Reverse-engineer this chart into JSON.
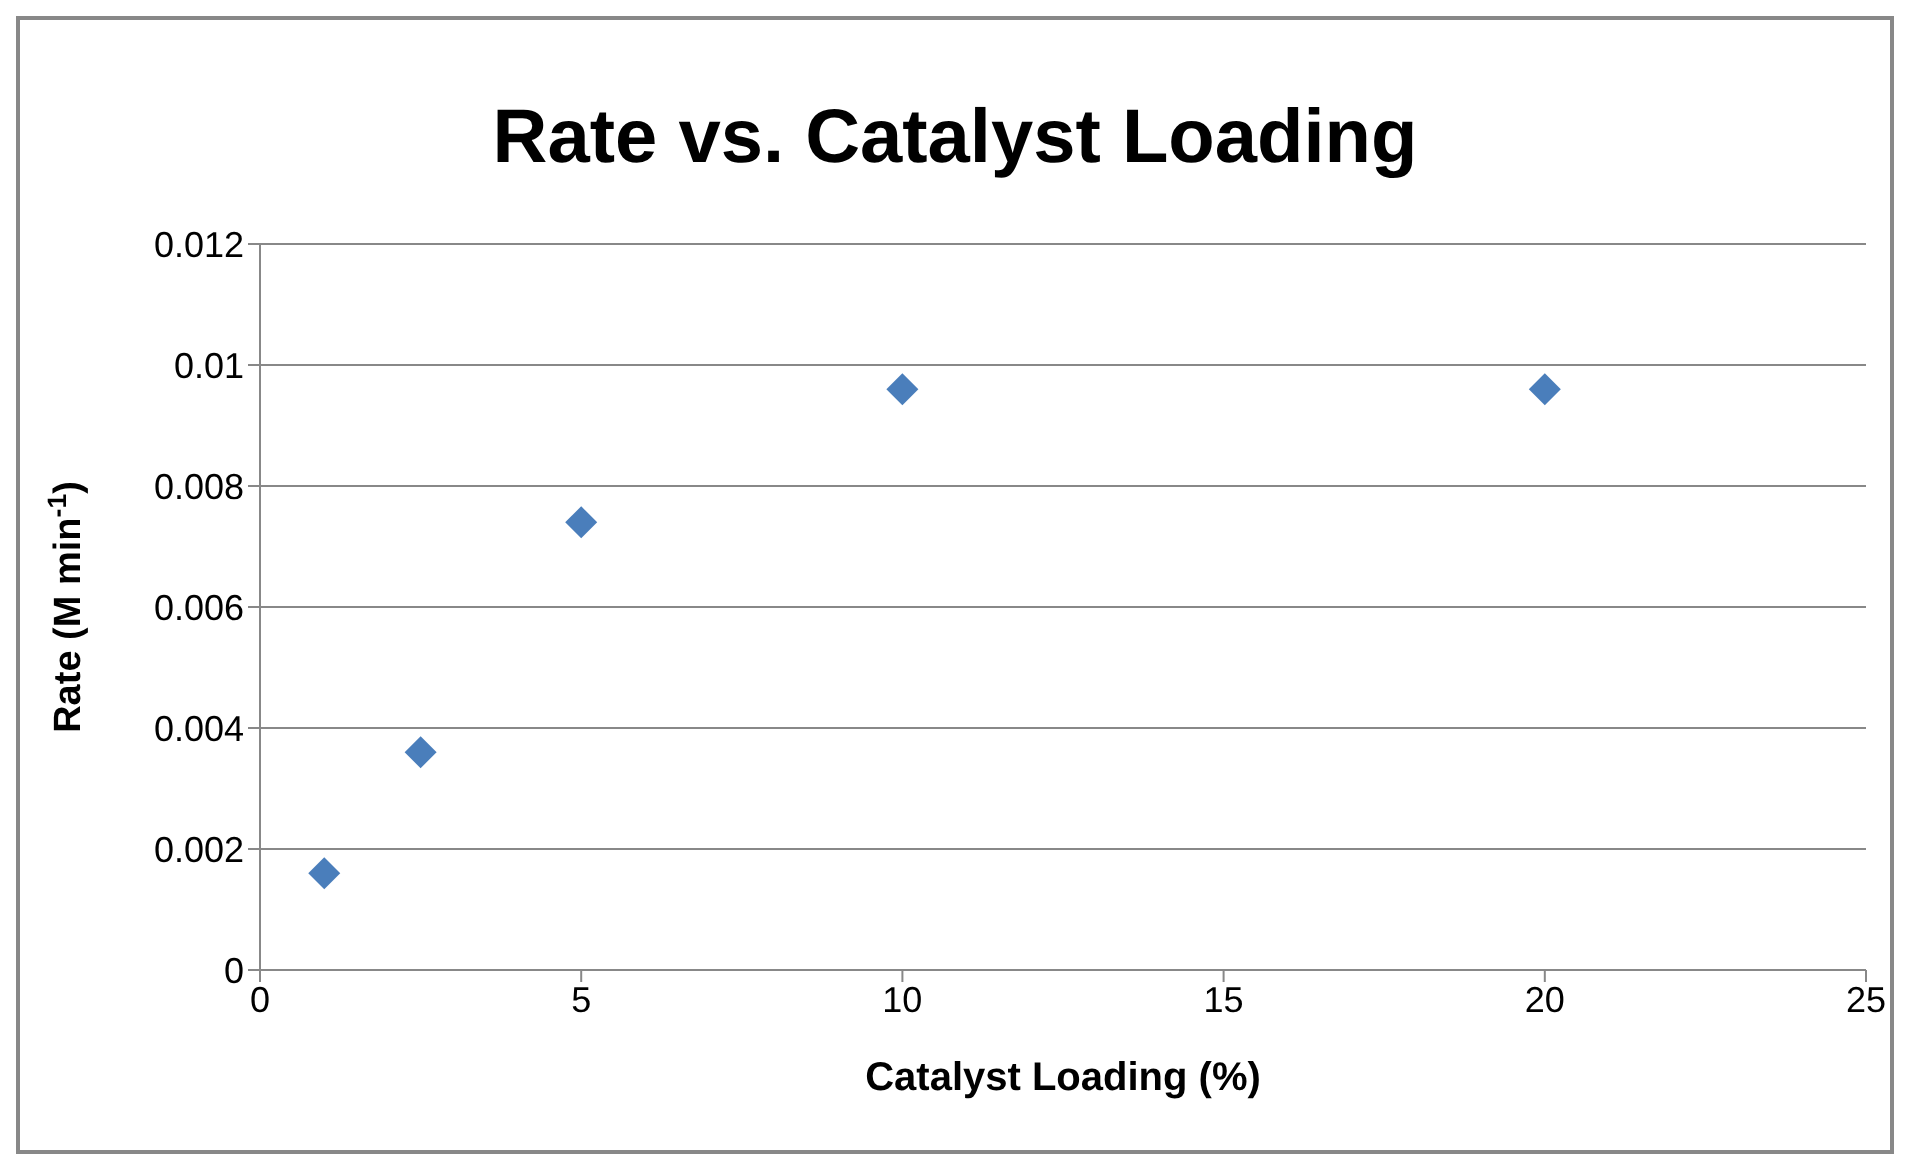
{
  "chart_data": {
    "type": "scatter",
    "title": "Rate vs. Catalyst Loading",
    "xlabel": "Catalyst Loading (%)",
    "ylabel": "Rate (M min$^{-1}$)",
    "x": [
      1,
      2.5,
      5,
      10,
      20
    ],
    "series": [
      {
        "color": "#4a7ebb",
        "values": [
          0.0016,
          0.0036,
          0.0074,
          0.0096,
          0.0096
        ]
      }
    ],
    "xlim": [
      0,
      25
    ],
    "xticks": [
      0,
      5,
      10,
      15,
      20,
      25
    ],
    "ylim": [
      0,
      0.012
    ],
    "yticks": [
      0,
      0.002,
      0.004,
      0.006,
      0.008,
      0.01,
      0.012
    ],
    "grid": "y",
    "marker": "diamond"
  }
}
